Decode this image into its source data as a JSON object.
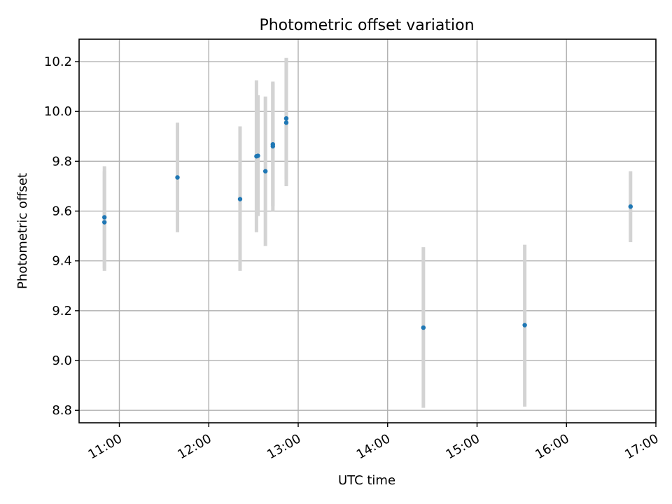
{
  "chart_data": {
    "type": "scatter",
    "title": "Photometric offset variation",
    "xlabel": "UTC time",
    "ylabel": "Photometric offset",
    "x_type": "time",
    "xlim": [
      "10:33",
      "17:00"
    ],
    "ylim": [
      8.75,
      10.29
    ],
    "x_ticks": [
      "11:00",
      "12:00",
      "13:00",
      "14:00",
      "15:00",
      "16:00",
      "17:00"
    ],
    "y_ticks": [
      8.8,
      9.0,
      9.2,
      9.4,
      9.6,
      9.8,
      10.0,
      10.2
    ],
    "grid": true,
    "legend": "none",
    "colors": {
      "point": "#1f77b4",
      "errorbar": "#d3d3d3"
    },
    "series": [
      {
        "points": [
          {
            "x": "10:50",
            "y": 9.575,
            "yerr_low": 9.37,
            "yerr_high": 9.78
          },
          {
            "x": "10:50",
            "y": 9.555,
            "yerr_low": 9.36,
            "yerr_high": 9.76
          },
          {
            "x": "11:39",
            "y": 9.735,
            "yerr_low": 9.515,
            "yerr_high": 9.955
          },
          {
            "x": "12:21",
            "y": 9.648,
            "yerr_low": 9.36,
            "yerr_high": 9.94
          },
          {
            "x": "12:32",
            "y": 9.82,
            "yerr_low": 9.515,
            "yerr_high": 10.125
          },
          {
            "x": "12:33",
            "y": 9.822,
            "yerr_low": 9.58,
            "yerr_high": 10.065
          },
          {
            "x": "12:38",
            "y": 9.76,
            "yerr_low": 9.46,
            "yerr_high": 10.06
          },
          {
            "x": "12:43",
            "y": 9.868,
            "yerr_low": 9.62,
            "yerr_high": 10.115
          },
          {
            "x": "12:43",
            "y": 9.86,
            "yerr_low": 9.6,
            "yerr_high": 10.12
          },
          {
            "x": "12:52",
            "y": 9.972,
            "yerr_low": 9.73,
            "yerr_high": 10.215
          },
          {
            "x": "12:52",
            "y": 9.955,
            "yerr_low": 9.7,
            "yerr_high": 10.21
          },
          {
            "x": "14:24",
            "y": 9.132,
            "yerr_low": 8.81,
            "yerr_high": 9.455
          },
          {
            "x": "15:32",
            "y": 9.142,
            "yerr_low": 8.815,
            "yerr_high": 9.465
          },
          {
            "x": "16:43",
            "y": 9.618,
            "yerr_low": 9.475,
            "yerr_high": 9.76
          }
        ]
      }
    ]
  }
}
